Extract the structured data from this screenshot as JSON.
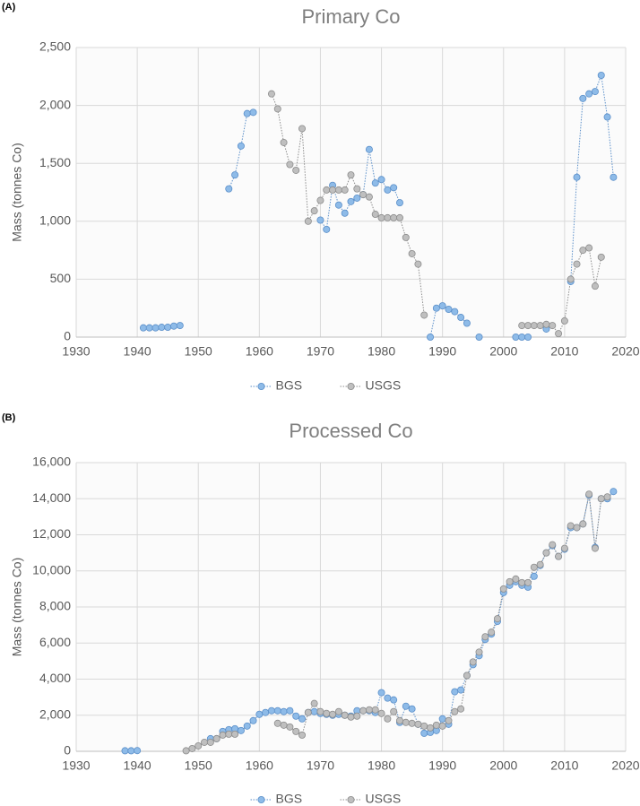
{
  "chart_data": [
    {
      "type": "scatter-line",
      "panel_label": "(A)",
      "title": "Primary Co",
      "y_label": "Mass (tonnes Co)",
      "xlim": [
        1930,
        2020
      ],
      "xticks": [
        1930,
        1940,
        1950,
        1960,
        1970,
        1980,
        1990,
        2000,
        2010,
        2020
      ],
      "ylim": [
        0,
        2500
      ],
      "yticks": [
        0,
        500,
        {
          "value": 1000,
          "label": "1,000"
        },
        {
          "value": 1500,
          "label": "1,500"
        },
        {
          "value": 2000,
          "label": "2,000"
        },
        {
          "value": 2500,
          "label": "2,500"
        }
      ],
      "grid": true,
      "legend": "bottom",
      "series": [
        {
          "name": "BGS",
          "color": "#8ebbe8",
          "x": [
            1941,
            1942,
            1943,
            1944,
            1945,
            1946,
            1947,
            1950,
            1955,
            1956,
            1957,
            1958,
            1959,
            1965,
            1970,
            1971,
            1972,
            1973,
            1974,
            1975,
            1976,
            1977,
            1978,
            1979,
            1980,
            1981,
            1982,
            1983,
            1985,
            1988,
            1989,
            1990,
            1991,
            1992,
            1993,
            1994,
            1995,
            1996,
            2000,
            2002,
            2003,
            2004,
            2005,
            2007,
            2009,
            2011,
            2012,
            2013,
            2014,
            2015,
            2016,
            2017,
            2018
          ],
          "values": [
            80,
            80,
            80,
            85,
            85,
            95,
            100,
            null,
            1280,
            1400,
            1650,
            1930,
            1940,
            null,
            1010,
            930,
            1310,
            1140,
            1070,
            1170,
            1200,
            1230,
            1620,
            1330,
            1360,
            1270,
            1290,
            1160,
            null,
            0,
            250,
            270,
            240,
            220,
            170,
            120,
            null,
            0,
            null,
            0,
            0,
            0,
            null,
            70,
            null,
            480,
            1380,
            2060,
            2100,
            2120,
            2260,
            1900,
            1380
          ]
        },
        {
          "name": "USGS",
          "color": "#bfbfbf",
          "x": [
            1962,
            1963,
            1964,
            1965,
            1966,
            1967,
            1968,
            1969,
            1970,
            1971,
            1972,
            1973,
            1974,
            1975,
            1976,
            1977,
            1978,
            1979,
            1980,
            1981,
            1982,
            1983,
            1984,
            1985,
            1986,
            1987,
            1995,
            2003,
            2004,
            2005,
            2006,
            2007,
            2008,
            2009,
            2010,
            2011,
            2012,
            2013,
            2014,
            2015,
            2016
          ],
          "values": [
            2100,
            1970,
            1680,
            1490,
            1440,
            1800,
            1000,
            1090,
            1180,
            1270,
            1270,
            1270,
            1270,
            1400,
            1280,
            1230,
            1210,
            1060,
            1030,
            1030,
            1030,
            1030,
            860,
            720,
            630,
            190,
            null,
            100,
            100,
            100,
            100,
            110,
            100,
            30,
            140,
            500,
            630,
            750,
            770,
            440,
            690
          ]
        }
      ]
    },
    {
      "type": "scatter-line",
      "panel_label": "(B)",
      "title": "Processed Co",
      "y_label": "Mass (tonnes Co)",
      "xlim": [
        1930,
        2020
      ],
      "xticks": [
        1930,
        1940,
        1950,
        1960,
        1970,
        1980,
        1990,
        2000,
        2010,
        2020
      ],
      "ylim": [
        0,
        16000
      ],
      "yticks": [
        0,
        {
          "value": 2000,
          "label": "2,000"
        },
        {
          "value": 4000,
          "label": "4,000"
        },
        {
          "value": 6000,
          "label": "6,000"
        },
        {
          "value": 8000,
          "label": "8,000"
        },
        {
          "value": 10000,
          "label": "10,000"
        },
        {
          "value": 12000,
          "label": "12,000"
        },
        {
          "value": 14000,
          "label": "14,000"
        },
        {
          "value": 16000,
          "label": "16,000"
        }
      ],
      "grid": true,
      "legend": "bottom",
      "series": [
        {
          "name": "BGS",
          "color": "#8ebbe8",
          "x": [
            1938,
            1939,
            1940,
            1945,
            1952,
            1953,
            1954,
            1955,
            1956,
            1957,
            1958,
            1959,
            1960,
            1961,
            1962,
            1963,
            1964,
            1965,
            1966,
            1967,
            1968,
            1969,
            1970,
            1971,
            1972,
            1973,
            1974,
            1975,
            1976,
            1977,
            1978,
            1979,
            1980,
            1981,
            1982,
            1983,
            1984,
            1985,
            1986,
            1987,
            1988,
            1989,
            1990,
            1991,
            1992,
            1993,
            1994,
            1995,
            1996,
            1997,
            1998,
            1999,
            2000,
            2001,
            2002,
            2003,
            2004,
            2005,
            2006,
            2007,
            2008,
            2009,
            2010,
            2011,
            2012,
            2013,
            2014,
            2015,
            2016,
            2017,
            2018
          ],
          "values": [
            30,
            30,
            40,
            null,
            700,
            700,
            1100,
            1200,
            1250,
            1150,
            1400,
            1700,
            2050,
            2150,
            2250,
            2250,
            2200,
            2250,
            1950,
            1800,
            2150,
            2200,
            2100,
            2050,
            2000,
            2050,
            2000,
            1950,
            2250,
            2250,
            2250,
            2150,
            3250,
            2950,
            2850,
            1600,
            2500,
            2350,
            1500,
            1000,
            1050,
            1150,
            1800,
            1500,
            3300,
            3400,
            4200,
            4800,
            5300,
            6200,
            6500,
            7200,
            8800,
            9200,
            9400,
            9200,
            9100,
            9700,
            10300,
            11000,
            11400,
            10800,
            11200,
            12400,
            12400,
            12600,
            14200,
            11300,
            14000,
            14000,
            14400
          ]
        },
        {
          "name": "USGS",
          "color": "#bfbfbf",
          "x": [
            1948,
            1949,
            1950,
            1951,
            1952,
            1953,
            1954,
            1955,
            1956,
            1957,
            1963,
            1964,
            1965,
            1966,
            1967,
            1968,
            1969,
            1970,
            1971,
            1972,
            1973,
            1974,
            1975,
            1976,
            1977,
            1978,
            1979,
            1980,
            1981,
            1982,
            1983,
            1984,
            1985,
            1986,
            1987,
            1988,
            1989,
            1990,
            1991,
            1992,
            1993,
            1994,
            1995,
            1996,
            1997,
            1998,
            1999,
            2000,
            2001,
            2002,
            2003,
            2004,
            2005,
            2006,
            2007,
            2008,
            2009,
            2010,
            2011,
            2012,
            2013,
            2014,
            2015,
            2016,
            2017
          ],
          "values": [
            30,
            150,
            300,
            500,
            500,
            700,
            900,
            950,
            950,
            null,
            1550,
            1450,
            1350,
            1100,
            900,
            2150,
            2650,
            2200,
            2100,
            2050,
            2200,
            2000,
            1900,
            1950,
            2250,
            2300,
            2300,
            2100,
            1800,
            2200,
            1700,
            1600,
            1550,
            1500,
            1400,
            1300,
            1450,
            1400,
            1700,
            2200,
            2350,
            4200,
            4950,
            5500,
            6350,
            6600,
            7350,
            9000,
            9400,
            9550,
            9350,
            9350,
            10200,
            10350,
            11000,
            11450,
            10800,
            11250,
            12500,
            12400,
            12600,
            14250,
            11250,
            14000,
            14100
          ]
        }
      ]
    }
  ]
}
